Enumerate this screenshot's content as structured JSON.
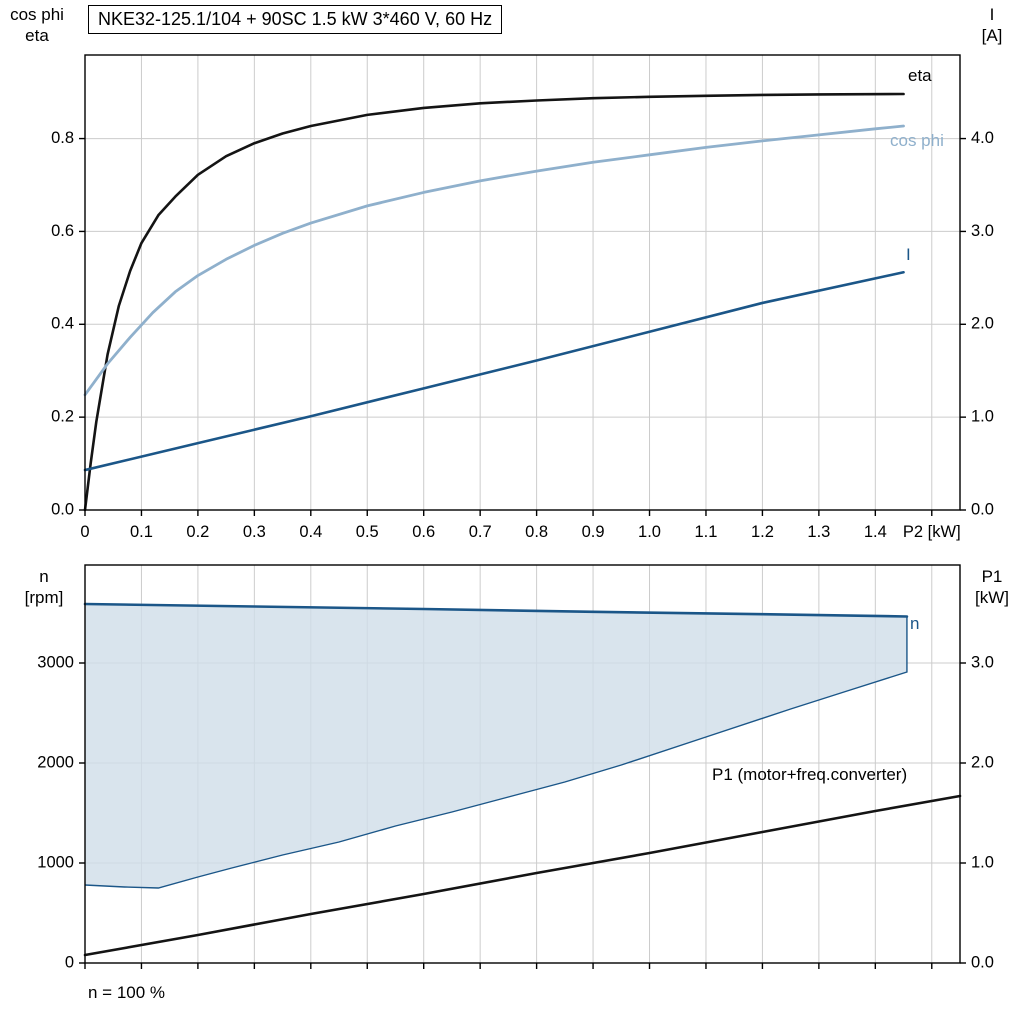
{
  "header": {
    "title": "NKE32-125.1/104 + 90SC   1.5 kW   3*460 V, 60 Hz"
  },
  "axes_labels": {
    "top_left_line1": "cos phi",
    "top_left_line2": "eta",
    "top_right_line1": "I",
    "top_right_line2": "[A]",
    "bottom_left_line1": "n",
    "bottom_left_line2": "[rpm]",
    "bottom_right_line1": "P1",
    "bottom_right_line2": "[kW]",
    "footnote": "n = 100 %"
  },
  "curve_labels": {
    "eta": "eta",
    "cos_phi": "cos phi",
    "current": "I",
    "speed": "n",
    "p1": "P1 (motor+freq.converter)"
  },
  "colors": {
    "black_curve": "#141414",
    "cos_phi_curve": "#8fb0cc",
    "blue_curve": "#1b5688",
    "envelope_fill": "#cfdde9",
    "grid": "#cccccc",
    "axis": "#000000",
    "background": "#ffffff"
  },
  "chart_data": [
    {
      "type": "line",
      "title": "NKE32-125.1/104 + 90SC   1.5 kW   3*460 V, 60 Hz",
      "xlabel": "P2 [kW]",
      "x_axis": {
        "min": 0,
        "max": 1.55,
        "tick_step": 0.1,
        "tick_labels": [
          "0",
          "0.1",
          "0.2",
          "0.3",
          "0.4",
          "0.5",
          "0.6",
          "0.7",
          "0.8",
          "0.9",
          "1.0",
          "1.1",
          "1.2",
          "1.3",
          "1.4"
        ],
        "unit_label": "P2 [kW]",
        "unit_label_at": 1.5
      },
      "left_axis": {
        "name": "cos phi / eta",
        "min": 0,
        "max": 0.98,
        "ticks": [
          0,
          0.2,
          0.4,
          0.6,
          0.8
        ],
        "decimals": 1
      },
      "right_axis": {
        "name": "I [A]",
        "min": 0,
        "max": 4.9,
        "ticks": [
          0,
          1,
          2,
          3,
          4
        ],
        "decimals": 1
      },
      "series": [
        {
          "name": "eta",
          "axis": "left",
          "color_key": "black_curve",
          "width": 2.6,
          "points": [
            [
              0,
              0
            ],
            [
              0.01,
              0.1
            ],
            [
              0.02,
              0.19
            ],
            [
              0.04,
              0.335
            ],
            [
              0.06,
              0.44
            ],
            [
              0.08,
              0.515
            ],
            [
              0.1,
              0.575
            ],
            [
              0.13,
              0.635
            ],
            [
              0.16,
              0.675
            ],
            [
              0.2,
              0.722
            ],
            [
              0.25,
              0.762
            ],
            [
              0.3,
              0.79
            ],
            [
              0.35,
              0.811
            ],
            [
              0.4,
              0.827
            ],
            [
              0.5,
              0.851
            ],
            [
              0.6,
              0.866
            ],
            [
              0.7,
              0.876
            ],
            [
              0.8,
              0.882
            ],
            [
              0.9,
              0.887
            ],
            [
              1.0,
              0.89
            ],
            [
              1.1,
              0.892
            ],
            [
              1.2,
              0.894
            ],
            [
              1.3,
              0.895
            ],
            [
              1.45,
              0.896
            ]
          ]
        },
        {
          "name": "cos phi",
          "axis": "left",
          "color_key": "cos_phi_curve",
          "width": 2.8,
          "points": [
            [
              0,
              0.248
            ],
            [
              0.04,
              0.315
            ],
            [
              0.08,
              0.372
            ],
            [
              0.12,
              0.425
            ],
            [
              0.16,
              0.47
            ],
            [
              0.2,
              0.505
            ],
            [
              0.25,
              0.54
            ],
            [
              0.3,
              0.57
            ],
            [
              0.35,
              0.596
            ],
            [
              0.4,
              0.618
            ],
            [
              0.5,
              0.655
            ],
            [
              0.6,
              0.684
            ],
            [
              0.7,
              0.709
            ],
            [
              0.8,
              0.73
            ],
            [
              0.9,
              0.749
            ],
            [
              1.0,
              0.765
            ],
            [
              1.1,
              0.781
            ],
            [
              1.2,
              0.795
            ],
            [
              1.3,
              0.808
            ],
            [
              1.4,
              0.821
            ],
            [
              1.45,
              0.827
            ]
          ]
        },
        {
          "name": "I",
          "axis": "right",
          "color_key": "blue_curve",
          "width": 2.6,
          "points": [
            [
              0,
              0.43
            ],
            [
              0.2,
              0.72
            ],
            [
              0.4,
              1.01
            ],
            [
              0.6,
              1.31
            ],
            [
              0.8,
              1.61
            ],
            [
              1.0,
              1.92
            ],
            [
              1.2,
              2.23
            ],
            [
              1.45,
              2.56
            ]
          ]
        }
      ]
    },
    {
      "type": "line",
      "xlabel": "",
      "x_axis": {
        "min": 0,
        "max": 1.55,
        "tick_step": 0.1,
        "tick_labels": []
      },
      "left_axis": {
        "name": "n [rpm]",
        "min": 0,
        "max": 3980,
        "ticks": [
          0,
          1000,
          2000,
          3000
        ],
        "decimals": 0
      },
      "right_axis": {
        "name": "P1 [kW]",
        "min": 0,
        "max": 3.98,
        "ticks": [
          0,
          1,
          2,
          3
        ],
        "decimals": 1
      },
      "envelope": {
        "name": "n operating envelope",
        "fill_key": "envelope_fill",
        "edge_key": "blue_curve",
        "top_points": [
          [
            0,
            3590
          ],
          [
            0.3,
            3565
          ],
          [
            0.6,
            3540
          ],
          [
            0.9,
            3512
          ],
          [
            1.2,
            3488
          ],
          [
            1.456,
            3465
          ]
        ],
        "bottom_points": [
          [
            0,
            780
          ],
          [
            0.07,
            760
          ],
          [
            0.13,
            750
          ],
          [
            0.2,
            860
          ],
          [
            0.26,
            950
          ],
          [
            0.35,
            1080
          ],
          [
            0.45,
            1210
          ],
          [
            0.55,
            1370
          ],
          [
            0.65,
            1510
          ],
          [
            0.75,
            1660
          ],
          [
            0.85,
            1810
          ],
          [
            0.95,
            1980
          ],
          [
            1.1,
            2260
          ],
          [
            1.25,
            2540
          ],
          [
            1.35,
            2720
          ],
          [
            1.456,
            2910
          ]
        ]
      },
      "series": [
        {
          "name": "P1 (motor+freq.converter)",
          "axis": "right",
          "color_key": "black_curve",
          "width": 2.6,
          "points": [
            [
              0,
              0.08
            ],
            [
              0.2,
              0.28
            ],
            [
              0.4,
              0.49
            ],
            [
              0.6,
              0.69
            ],
            [
              0.8,
              0.9
            ],
            [
              1.0,
              1.1
            ],
            [
              1.2,
              1.31
            ],
            [
              1.4,
              1.52
            ],
            [
              1.55,
              1.67
            ]
          ]
        }
      ]
    }
  ]
}
